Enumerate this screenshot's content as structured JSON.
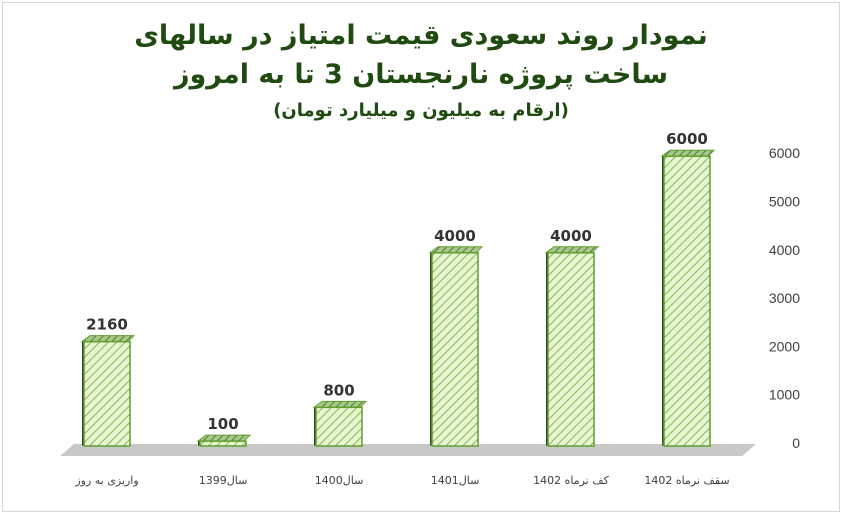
{
  "chart_data": {
    "type": "bar",
    "title_lines": [
      "نمودار روند سعودی قیمت امتیاز در سالهای",
      "ساخت پروژه نارنجستان 3 تا به امروز",
      "(ارقام به میلیون و میلیارد تومان)"
    ],
    "categories": [
      "واریزی به روز",
      "سال1399",
      "سال1400",
      "سال1401",
      "کف نرماه 1402",
      "سقف نرماه 1402"
    ],
    "values": [
      2160,
      100,
      800,
      4000,
      4000,
      6000
    ],
    "value_labels": [
      "2160",
      "100",
      "800",
      "4000",
      "4000",
      "6000"
    ],
    "y_ticks": [
      "0",
      "1000",
      "2000",
      "3000",
      "4000",
      "5000",
      "6000"
    ],
    "ylim": [
      0,
      6000
    ],
    "y_axis_side": "right",
    "grid": false,
    "colors": {
      "bar_fill": "#e9f5d2",
      "bar_hatch": "#7dbb4f",
      "bar_edge": "#5f9e2f",
      "bar_side": "#2f4a1c",
      "floor": "#c8c8c8",
      "title": "#1f4a10",
      "text": "#404040"
    }
  }
}
